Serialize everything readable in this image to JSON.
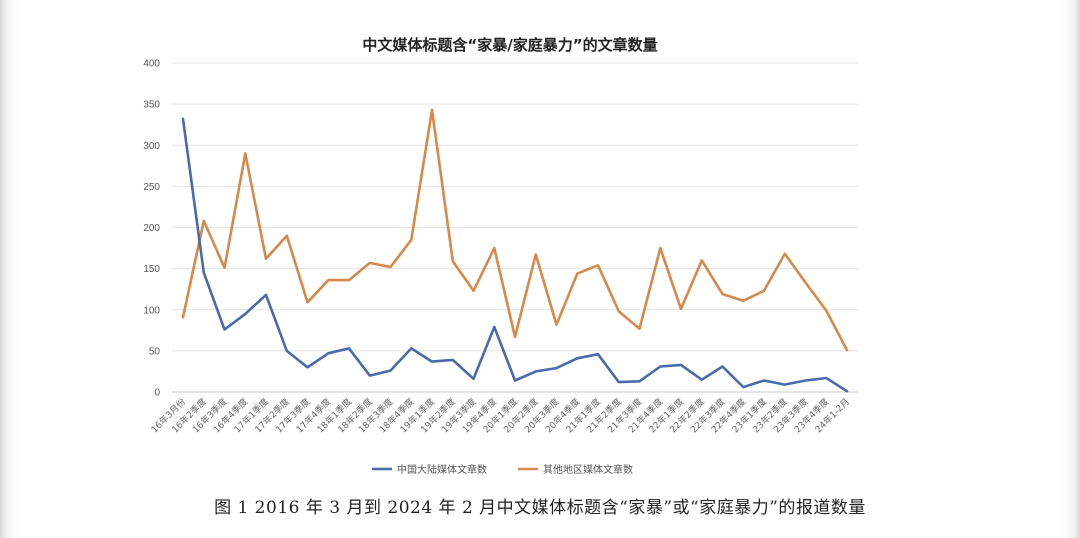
{
  "chart_data": {
    "type": "line",
    "title": "中文媒体标题含“家暴/家庭暴力”的文章数量",
    "xlabel": "",
    "ylabel": "",
    "ylim": [
      0,
      400
    ],
    "yticks": [
      0,
      50,
      100,
      150,
      200,
      250,
      300,
      350,
      400
    ],
    "grid": true,
    "legend_position": "bottom",
    "categories": [
      "16年3月份",
      "16年2季度",
      "16年3季度",
      "16年4季度",
      "17年1季度",
      "17年2季度",
      "17年3季度",
      "17年4季度",
      "18年1季度",
      "18年2季度",
      "18年3季度",
      "18年4季度",
      "19年1季度",
      "19年2季度",
      "19年3季度",
      "19年4季度",
      "20年1季度",
      "20年2季度",
      "20年3季度",
      "20年4季度",
      "21年1季度",
      "21年2季度",
      "21年3季度",
      "21年4季度",
      "22年1季度",
      "22年2季度",
      "22年3季度",
      "22年4季度",
      "23年1季度",
      "23年2季度",
      "23年3季度",
      "23年4季度",
      "24年1-2月"
    ],
    "series": [
      {
        "name": "中国大陆媒体文章数",
        "color": "#4a6aaa",
        "values": [
          332,
          145,
          76,
          95,
          118,
          50,
          30,
          47,
          53,
          20,
          26,
          53,
          37,
          39,
          16,
          79,
          14,
          25,
          29,
          41,
          46,
          12,
          13,
          31,
          33,
          15,
          31,
          6,
          14,
          9,
          14,
          17,
          1
        ]
      },
      {
        "name": "其他地区媒体文章数",
        "color": "#d6894a",
        "values": [
          91,
          208,
          151,
          290,
          162,
          190,
          109,
          136,
          136,
          157,
          152,
          185,
          343,
          159,
          123,
          175,
          67,
          167,
          82,
          144,
          154,
          98,
          77,
          175,
          101,
          160,
          119,
          111,
          123,
          168,
          133,
          99,
          51
        ]
      }
    ]
  },
  "caption": "图 1 2016 年 3 月到 2024 年 2 月中文媒体标题含“家暴”或“家庭暴力”的报道数量"
}
